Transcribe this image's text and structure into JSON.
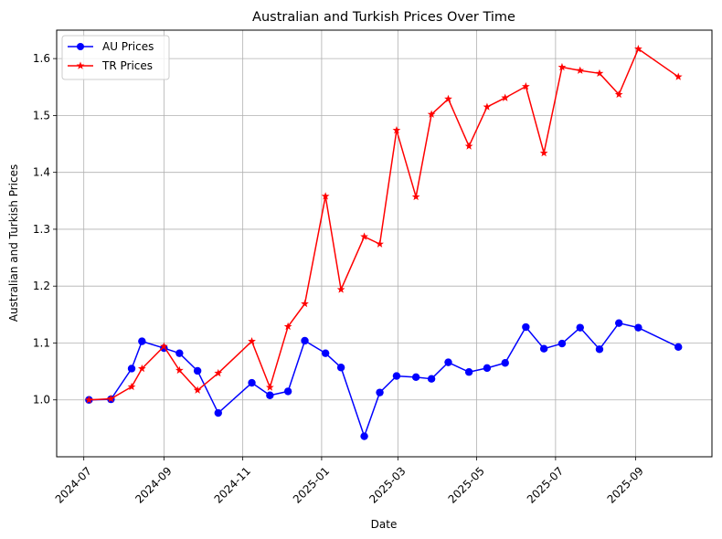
{
  "chart_data": {
    "type": "line",
    "title": "Australian and Turkish Prices Over Time",
    "xlabel": "Date",
    "ylabel": "Australian and Turkish Prices",
    "xlim": [
      "2024-06-10",
      "2025-10-30"
    ],
    "ylim": [
      0.9,
      1.65
    ],
    "x_ticks": [
      "2024-07",
      "2024-09",
      "2024-11",
      "2025-01",
      "2025-03",
      "2025-05",
      "2025-07",
      "2025-09"
    ],
    "y_ticks": [
      "1.0",
      "1.1",
      "1.2",
      "1.3",
      "1.4",
      "1.5",
      "1.6"
    ],
    "grid": true,
    "legend_position": "upper-left",
    "series": [
      {
        "name": "AU Prices",
        "color": "#0000ff",
        "marker": "circle",
        "x": [
          "2024-07-05",
          "2024-07-22",
          "2024-08-07",
          "2024-08-15",
          "2024-09-01",
          "2024-09-13",
          "2024-09-27",
          "2024-10-13",
          "2024-11-08",
          "2024-11-22",
          "2024-12-06",
          "2024-12-19",
          "2025-01-04",
          "2025-01-16",
          "2025-02-03",
          "2025-02-15",
          "2025-02-28",
          "2025-03-15",
          "2025-03-27",
          "2025-04-09",
          "2025-04-25",
          "2025-05-09",
          "2025-05-23",
          "2025-06-08",
          "2025-06-22",
          "2025-07-06",
          "2025-07-20",
          "2025-08-04",
          "2025-08-19",
          "2025-09-03",
          "2025-10-04"
        ],
        "y": [
          1.0,
          1.001,
          1.055,
          1.103,
          1.091,
          1.082,
          1.051,
          0.977,
          1.03,
          1.008,
          1.015,
          1.104,
          1.082,
          1.057,
          0.936,
          1.013,
          1.042,
          1.04,
          1.037,
          1.066,
          1.049,
          1.056,
          1.065,
          1.128,
          1.09,
          1.099,
          1.127,
          1.089,
          1.135,
          1.127,
          1.093
        ]
      },
      {
        "name": "TR Prices",
        "color": "#ff0000",
        "marker": "star",
        "x": [
          "2024-07-05",
          "2024-07-22",
          "2024-08-07",
          "2024-08-15",
          "2024-09-01",
          "2024-09-13",
          "2024-09-27",
          "2024-10-13",
          "2024-11-08",
          "2024-11-22",
          "2024-12-06",
          "2024-12-19",
          "2025-01-04",
          "2025-01-16",
          "2025-02-03",
          "2025-02-15",
          "2025-02-28",
          "2025-03-15",
          "2025-03-27",
          "2025-04-09",
          "2025-04-25",
          "2025-05-09",
          "2025-05-23",
          "2025-06-08",
          "2025-06-22",
          "2025-07-06",
          "2025-07-20",
          "2025-08-04",
          "2025-08-19",
          "2025-09-03",
          "2025-10-04"
        ],
        "y": [
          1.0,
          1.002,
          1.023,
          1.055,
          1.094,
          1.052,
          1.017,
          1.047,
          1.103,
          1.022,
          1.129,
          1.169,
          1.358,
          1.194,
          1.287,
          1.274,
          1.474,
          1.357,
          1.502,
          1.529,
          1.446,
          1.515,
          1.531,
          1.551,
          1.434,
          1.585,
          1.579,
          1.574,
          1.537,
          1.617,
          1.568
        ]
      }
    ]
  }
}
